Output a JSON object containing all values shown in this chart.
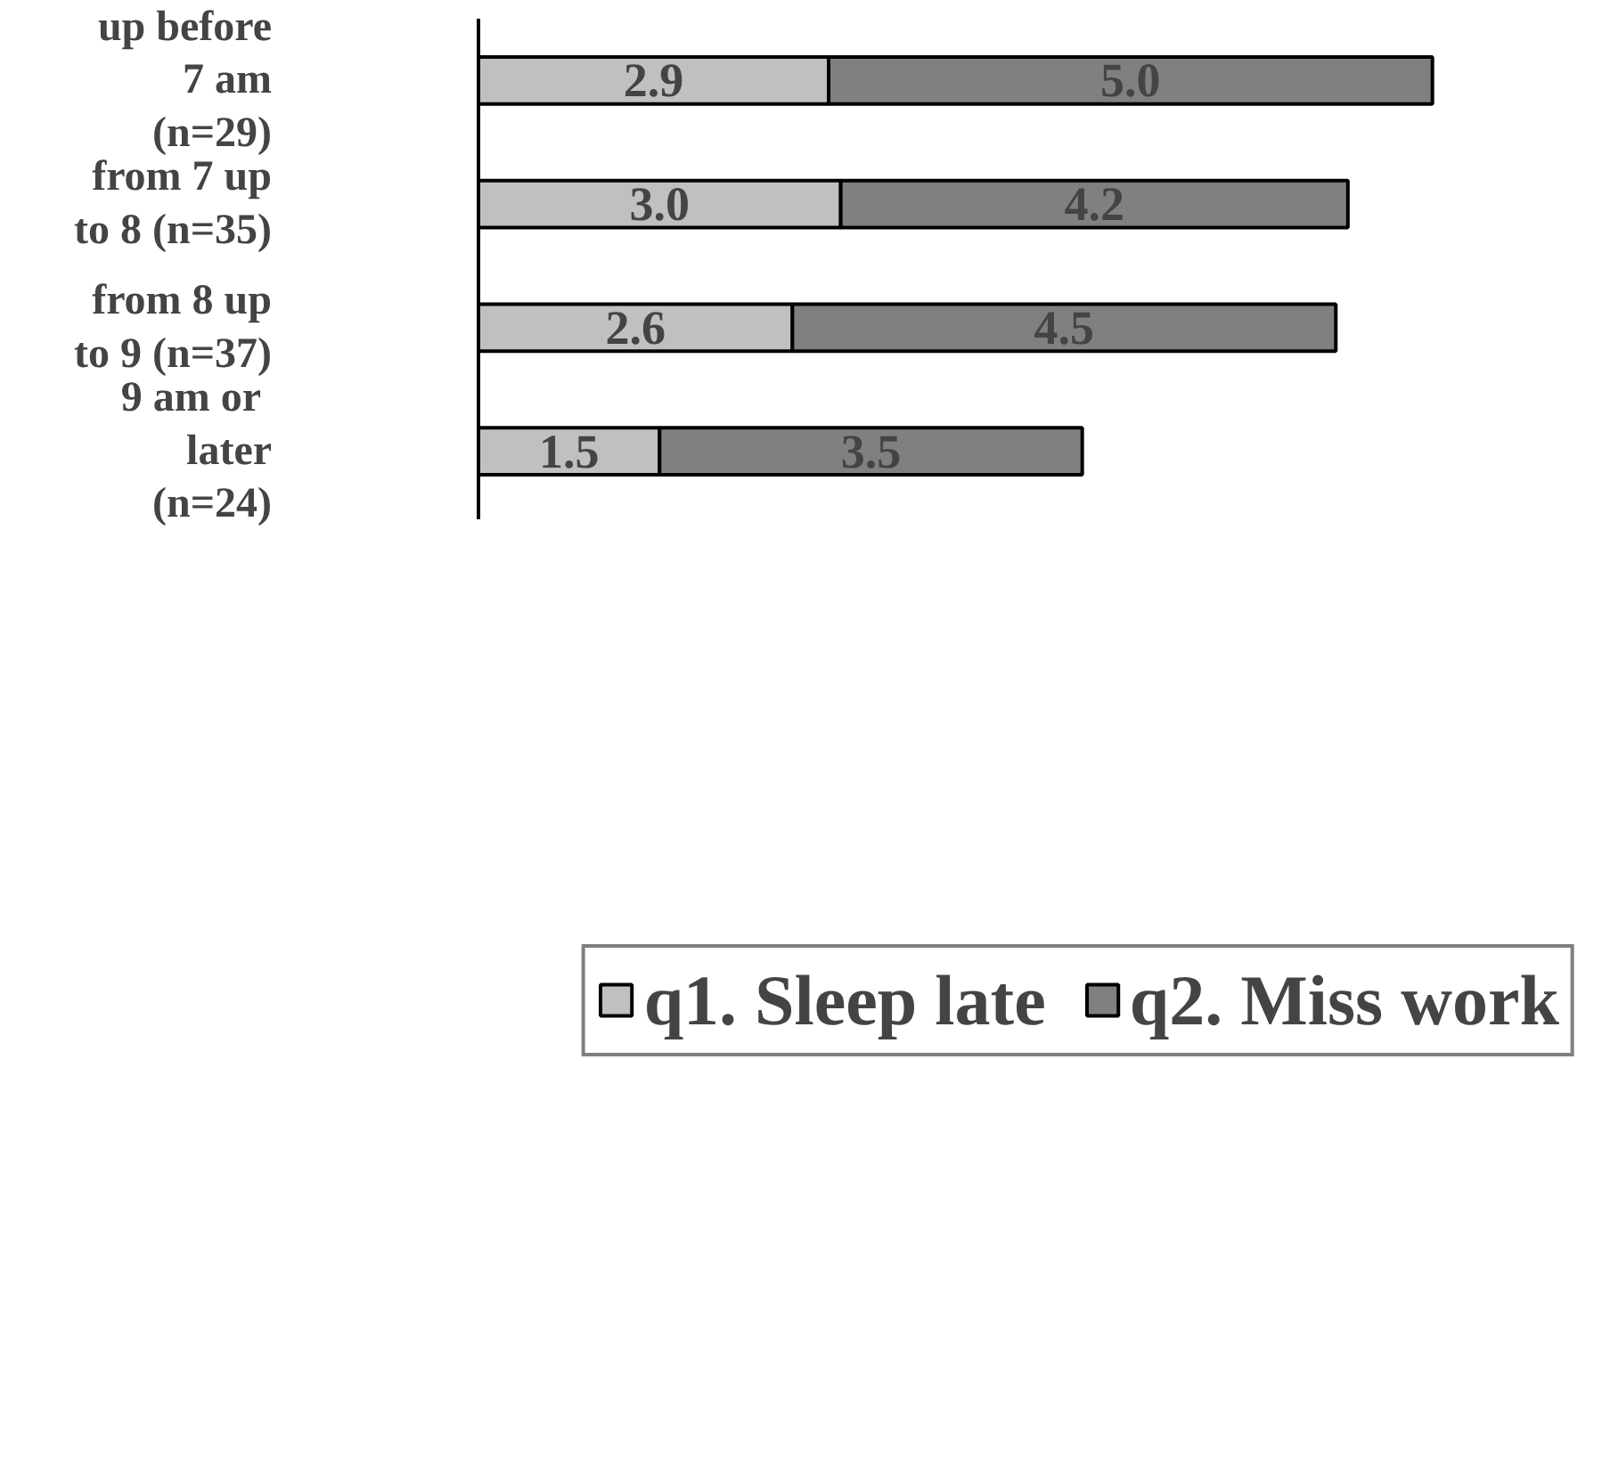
{
  "chart_data": {
    "type": "bar",
    "orientation": "horizontal",
    "stacked": true,
    "categories": [
      "up before\n7 am\n(n=29)",
      "from 7 up\nto 8 (n=35)",
      "from 8 up\nto 9 (n=37)",
      "9  am or\nlater\n(n=24)"
    ],
    "series": [
      {
        "name": "q1. Sleep late",
        "color": "#c0c0c0",
        "values": [
          2.9,
          3.0,
          2.6,
          1.5
        ],
        "value_labels": [
          "2.9",
          "3.0",
          "2.6",
          "1.5"
        ]
      },
      {
        "name": "q2. Miss work",
        "color": "#808080",
        "values": [
          5.0,
          4.2,
          4.5,
          3.5
        ],
        "value_labels": [
          "5.0",
          "4.2",
          "4.5",
          "3.5"
        ]
      }
    ],
    "legend": "bottom",
    "grid": false
  }
}
